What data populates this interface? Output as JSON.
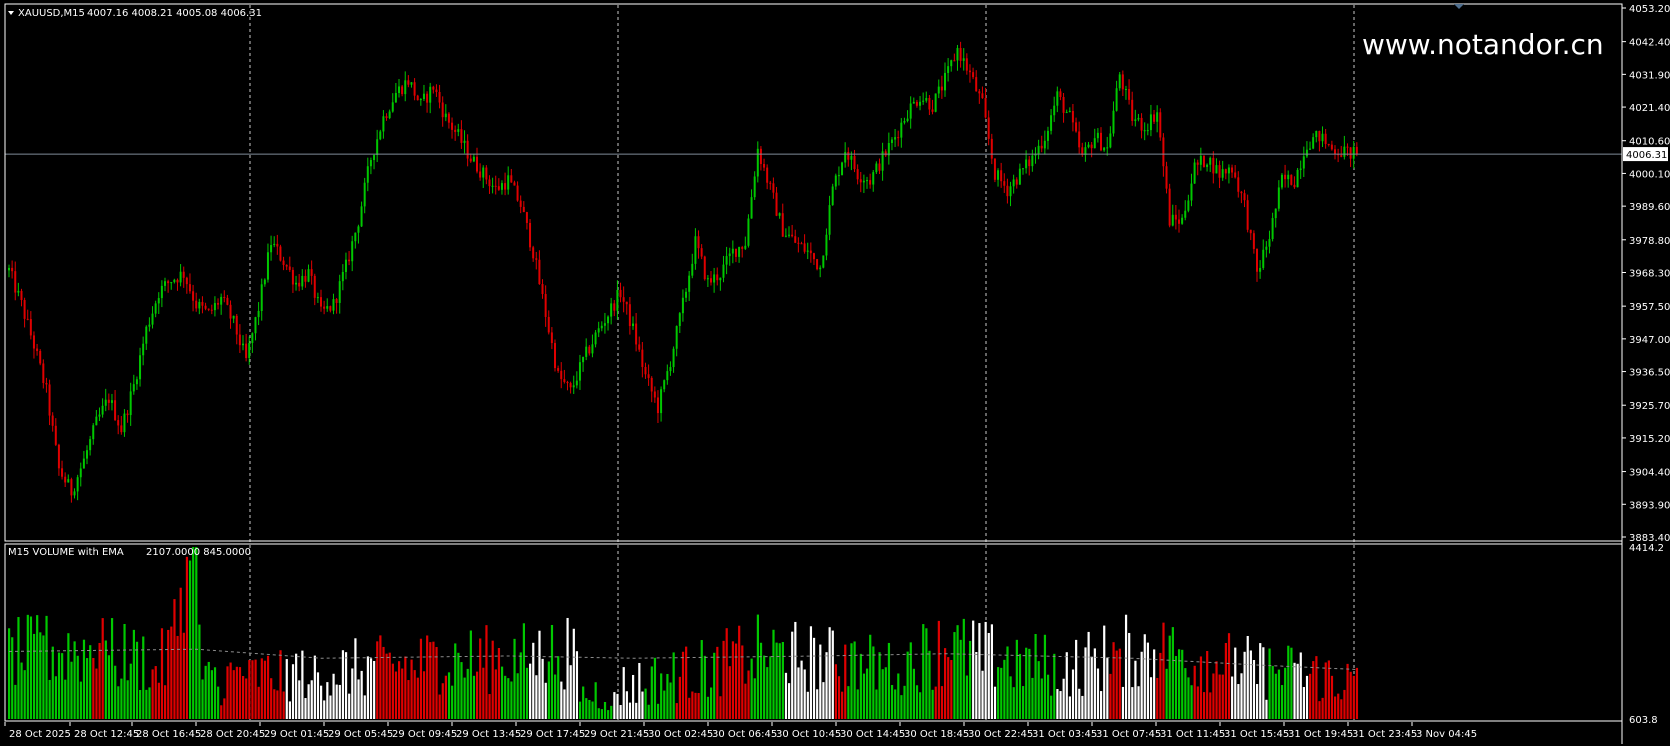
{
  "chart_data": [
    {
      "type": "candlestick",
      "symbol_header": "XAUUSD,M15",
      "ohlc_header": "4007.16 4008.21 4005.08 4006.31",
      "current_price_label": "4006.31",
      "current_price": 4006.31,
      "ylim": [
        3883.4,
        4053.2
      ],
      "yticks": [
        "4053.20",
        "4042.40",
        "4031.90",
        "4021.40",
        "4010.60",
        "4000.10",
        "3989.60",
        "3978.80",
        "3968.30",
        "3957.50",
        "3947.00",
        "3936.50",
        "3925.70",
        "3915.20",
        "3904.40",
        "3893.90",
        "3883.40"
      ],
      "xticks": [
        "28 Oct 2025",
        "28 Oct 12:45",
        "28 Oct 16:45",
        "28 Oct 20:45",
        "29 Oct 01:45",
        "29 Oct 05:45",
        "29 Oct 09:45",
        "29 Oct 13:45",
        "29 Oct 17:45",
        "29 Oct 21:45",
        "30 Oct 02:45",
        "30 Oct 06:45",
        "30 Oct 10:45",
        "30 Oct 14:45",
        "30 Oct 18:45",
        "30 Oct 22:45",
        "31 Oct 03:45",
        "31 Oct 07:45",
        "31 Oct 11:45",
        "31 Oct 15:45",
        "31 Oct 19:45",
        "31 Oct 23:45",
        "3 Nov 04:45"
      ],
      "up_color": "#00c800",
      "down_color": "#e00000",
      "grid": false,
      "period_separators": true,
      "close_path": [
        [
          0,
          3969
        ],
        [
          4,
          3958
        ],
        [
          8,
          3945
        ],
        [
          12,
          3930
        ],
        [
          16,
          3905
        ],
        [
          20,
          3898
        ],
        [
          24,
          3908
        ],
        [
          28,
          3920
        ],
        [
          32,
          3928
        ],
        [
          36,
          3918
        ],
        [
          40,
          3932
        ],
        [
          44,
          3950
        ],
        [
          48,
          3962
        ],
        [
          52,
          3966
        ],
        [
          56,
          3968
        ],
        [
          60,
          3958
        ],
        [
          64,
          3955
        ],
        [
          68,
          3960
        ],
        [
          72,
          3952
        ],
        [
          76,
          3940
        ],
        [
          80,
          3957
        ],
        [
          84,
          3978
        ],
        [
          88,
          3972
        ],
        [
          92,
          3965
        ],
        [
          96,
          3968
        ],
        [
          100,
          3955
        ],
        [
          104,
          3958
        ],
        [
          108,
          3970
        ],
        [
          112,
          3985
        ],
        [
          116,
          4005
        ],
        [
          120,
          4018
        ],
        [
          124,
          4026
        ],
        [
          128,
          4030
        ],
        [
          132,
          4022
        ],
        [
          136,
          4028
        ],
        [
          140,
          4018
        ],
        [
          144,
          4012
        ],
        [
          148,
          4005
        ],
        [
          152,
          4000
        ],
        [
          156,
          3995
        ],
        [
          160,
          3998
        ],
        [
          164,
          3990
        ],
        [
          168,
          3975
        ],
        [
          172,
          3955
        ],
        [
          176,
          3935
        ],
        [
          180,
          3930
        ],
        [
          184,
          3940
        ],
        [
          188,
          3948
        ],
        [
          192,
          3955
        ],
        [
          196,
          3962
        ],
        [
          200,
          3950
        ],
        [
          204,
          3935
        ],
        [
          208,
          3925
        ],
        [
          212,
          3940
        ],
        [
          216,
          3958
        ],
        [
          220,
          3978
        ],
        [
          224,
          3965
        ],
        [
          228,
          3968
        ],
        [
          232,
          3975
        ],
        [
          236,
          3978
        ],
        [
          240,
          4008
        ],
        [
          244,
          3995
        ],
        [
          248,
          3982
        ],
        [
          252,
          3978
        ],
        [
          256,
          3975
        ],
        [
          260,
          3970
        ],
        [
          264,
          3995
        ],
        [
          268,
          4008
        ],
        [
          272,
          4000
        ],
        [
          276,
          3998
        ],
        [
          280,
          4005
        ],
        [
          284,
          4012
        ],
        [
          288,
          4020
        ],
        [
          292,
          4025
        ],
        [
          296,
          4022
        ],
        [
          300,
          4030
        ],
        [
          304,
          4040
        ],
        [
          308,
          4032
        ],
        [
          312,
          4022
        ],
        [
          316,
          4000
        ],
        [
          320,
          3995
        ],
        [
          324,
          4000
        ],
        [
          328,
          4005
        ],
        [
          332,
          4012
        ],
        [
          336,
          4025
        ],
        [
          340,
          4018
        ],
        [
          344,
          4005
        ],
        [
          348,
          4012
        ],
        [
          352,
          4008
        ],
        [
          356,
          4032
        ],
        [
          360,
          4018
        ],
        [
          364,
          4015
        ],
        [
          368,
          4020
        ],
        [
          372,
          3985
        ],
        [
          376,
          3985
        ],
        [
          380,
          4002
        ],
        [
          384,
          4005
        ],
        [
          388,
          4000
        ],
        [
          392,
          4002
        ],
        [
          396,
          3990
        ],
        [
          400,
          3968
        ],
        [
          404,
          3980
        ],
        [
          408,
          3998
        ],
        [
          412,
          3998
        ],
        [
          416,
          4010
        ],
        [
          420,
          4012
        ],
        [
          424,
          4008
        ],
        [
          428,
          4007
        ],
        [
          432,
          4006.31
        ]
      ]
    },
    {
      "type": "bar",
      "title": "M15 VOLUME with EMA",
      "values_header": "2107.0000 845.0000",
      "ylim": [
        603.8,
        4414.2
      ],
      "yticks": [
        "4414.2",
        "603.8"
      ],
      "up_color": "#00c800",
      "down_color": "#e00000",
      "neutral_color": "#ffffff",
      "ema_color": "#8c8c8c",
      "volume_profile": [
        [
          0,
          2200
        ],
        [
          20,
          2350
        ],
        [
          50,
          2000
        ],
        [
          60,
          4414
        ],
        [
          62,
          1500
        ],
        [
          70,
          1650
        ],
        [
          80,
          1700
        ],
        [
          100,
          1800
        ],
        [
          120,
          1900
        ],
        [
          140,
          2050
        ],
        [
          160,
          2100
        ],
        [
          180,
          2300
        ],
        [
          184,
          1200
        ],
        [
          200,
          1500
        ],
        [
          220,
          1800
        ],
        [
          240,
          2250
        ],
        [
          260,
          2100
        ],
        [
          280,
          1900
        ],
        [
          300,
          2350
        ],
        [
          320,
          2050
        ],
        [
          340,
          1900
        ],
        [
          360,
          2300
        ],
        [
          380,
          2200
        ],
        [
          400,
          1850
        ],
        [
          420,
          1700
        ],
        [
          432,
          1500
        ]
      ],
      "ema_profile": [
        [
          0,
          2100
        ],
        [
          60,
          2150
        ],
        [
          100,
          1950
        ],
        [
          160,
          2000
        ],
        [
          200,
          1950
        ],
        [
          260,
          2000
        ],
        [
          300,
          2050
        ],
        [
          360,
          1950
        ],
        [
          400,
          1800
        ],
        [
          432,
          1700
        ]
      ]
    }
  ]
}
